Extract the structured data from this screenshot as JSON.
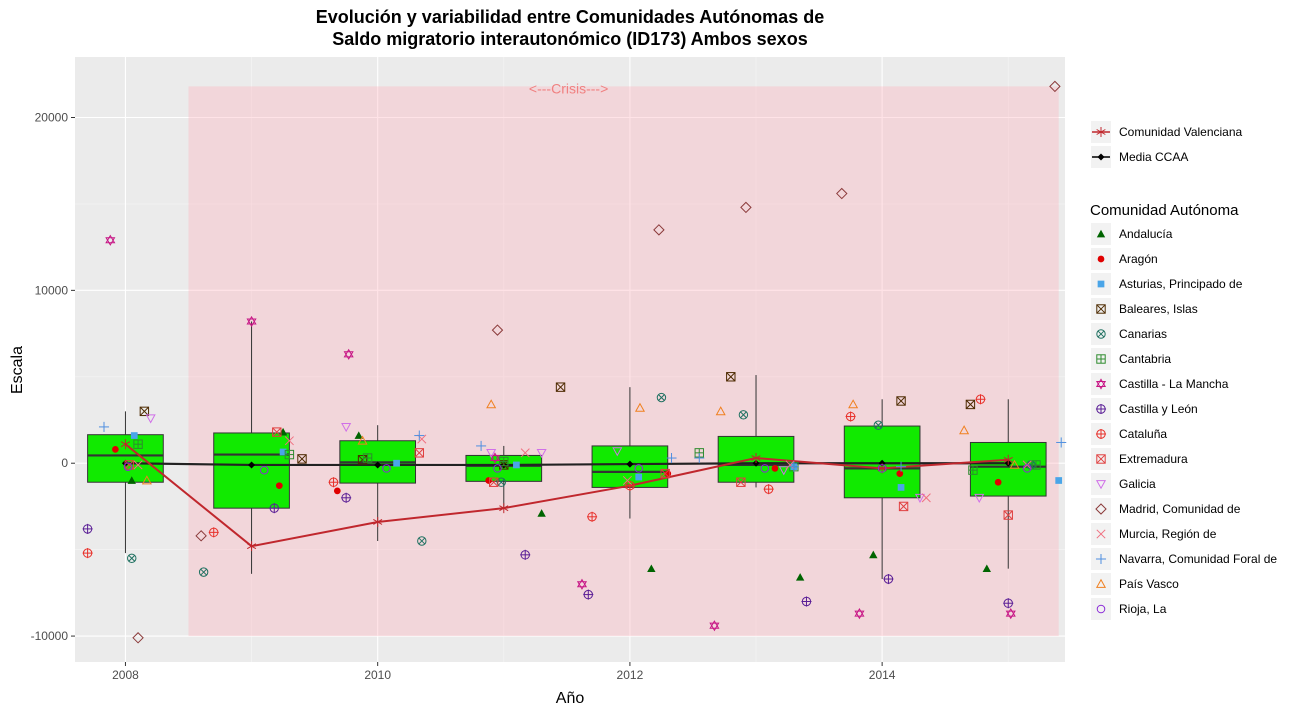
{
  "chart_data": {
    "type": "boxplot",
    "title_line1": "Evolución y variabilidad entre Comunidades Autónomas de",
    "title_line2": "Saldo migratorio interautonómico (ID173) Ambos sexos",
    "xlabel": "Año",
    "ylabel": "Escala",
    "xlim": [
      2007.6,
      2015.45
    ],
    "ylim": [
      -11500,
      23500
    ],
    "x_ticks": [
      2008,
      2010,
      2012,
      2014
    ],
    "y_ticks": [
      -10000,
      0,
      10000,
      20000
    ],
    "crisis": {
      "label": "<---Crisis--->",
      "x0": 2008.5,
      "x1": 2015.4,
      "y0": -10000,
      "y1": 21800,
      "color": "#ffb6c1"
    },
    "years": [
      2008,
      2009,
      2010,
      2011,
      2012,
      2013,
      2014,
      2015
    ],
    "boxes": [
      {
        "year": 2008,
        "q1": -1100,
        "median": 450,
        "q3": 1650,
        "lo": -5200,
        "hi": 3000
      },
      {
        "year": 2009,
        "q1": -2600,
        "median": 500,
        "q3": 1750,
        "lo": -6400,
        "hi": 8200
      },
      {
        "year": 2010,
        "q1": -1150,
        "median": 50,
        "q3": 1300,
        "lo": -4500,
        "hi": 2200
      },
      {
        "year": 2011,
        "q1": -1050,
        "median": -150,
        "q3": 450,
        "lo": -2600,
        "hi": 1000
      },
      {
        "year": 2012,
        "q1": -1400,
        "median": -500,
        "q3": 1000,
        "lo": -3200,
        "hi": 4400
      },
      {
        "year": 2013,
        "q1": -1100,
        "median": -100,
        "q3": 1550,
        "lo": -1400,
        "hi": 5100
      },
      {
        "year": 2014,
        "q1": -2000,
        "median": -300,
        "q3": 2150,
        "lo": -6700,
        "hi": 3700
      },
      {
        "year": 2015,
        "q1": -1900,
        "median": -200,
        "q3": 1200,
        "lo": -6100,
        "hi": 3700
      }
    ],
    "box_color": "#11ea00",
    "media_ccaa": [
      0,
      -100,
      -100,
      -100,
      -50,
      0,
      0,
      0
    ],
    "comunidad_valenciana": [
      1100,
      -4800,
      -3400,
      -2600,
      -1300,
      300,
      -300,
      200
    ],
    "legend_top": [
      {
        "name": "Comunidad Valenciana",
        "shape": "asterisk",
        "color": "#c0272d"
      },
      {
        "name": "Media CCAA",
        "shape": "diamond-filled",
        "color": "#000000"
      }
    ],
    "legend_title": "Comunidad Autónoma",
    "series": [
      {
        "name": "Andalucía",
        "shape": "triangle-filled",
        "color": "#006400",
        "points": [
          [
            2008.05,
            -1000
          ],
          [
            2009.25,
            1800
          ],
          [
            2009.85,
            1600
          ],
          [
            2011.3,
            -2900
          ],
          [
            2012.17,
            -6100
          ],
          [
            2013.35,
            -6600
          ],
          [
            2013.93,
            -5300
          ],
          [
            2014.83,
            -6100
          ]
        ]
      },
      {
        "name": "Aragón",
        "shape": "circle-filled",
        "color": "#e00000",
        "points": [
          [
            2007.92,
            800
          ],
          [
            2009.22,
            -1300
          ],
          [
            2009.68,
            -1600
          ],
          [
            2010.88,
            -1000
          ],
          [
            2012.3,
            -600
          ],
          [
            2013.15,
            -300
          ],
          [
            2014.14,
            -600
          ],
          [
            2014.92,
            -1100
          ]
        ]
      },
      {
        "name": "Asturias, Principado de",
        "shape": "square-filled",
        "color": "#4aa5e8",
        "points": [
          [
            2008.07,
            1600
          ],
          [
            2009.25,
            650
          ],
          [
            2010.15,
            0
          ],
          [
            2011.1,
            -100
          ],
          [
            2012.07,
            -800
          ],
          [
            2013.3,
            -200
          ],
          [
            2014.15,
            -1400
          ],
          [
            2015.4,
            -1000
          ]
        ]
      },
      {
        "name": "Baleares, Islas",
        "shape": "square-x",
        "color": "#4d2a00",
        "points": [
          [
            2008.15,
            3000
          ],
          [
            2009.4,
            250
          ],
          [
            2009.88,
            200
          ],
          [
            2011.0,
            -100
          ],
          [
            2011.45,
            4400
          ],
          [
            2012.8,
            5000
          ],
          [
            2014.15,
            3600
          ],
          [
            2014.7,
            3400
          ]
        ]
      },
      {
        "name": "Canarias",
        "shape": "circle-x",
        "color": "#1e7060",
        "points": [
          [
            2008.05,
            -5500
          ],
          [
            2008.62,
            -6300
          ],
          [
            2010.35,
            -4500
          ],
          [
            2010.98,
            -1100
          ],
          [
            2012.25,
            3800
          ],
          [
            2012.9,
            2800
          ],
          [
            2013.97,
            2200
          ],
          [
            2015.18,
            -100
          ]
        ]
      },
      {
        "name": "Cantabria",
        "shape": "square-plus",
        "color": "#2e8b2e",
        "points": [
          [
            2008.1,
            1100
          ],
          [
            2009.3,
            500
          ],
          [
            2009.92,
            300
          ],
          [
            2011.0,
            100
          ],
          [
            2012.55,
            600
          ],
          [
            2013.3,
            -200
          ],
          [
            2014.72,
            -400
          ],
          [
            2015.22,
            -100
          ]
        ]
      },
      {
        "name": "Castilla - La Mancha",
        "shape": "star-david",
        "color": "#c71585",
        "points": [
          [
            2007.88,
            12900
          ],
          [
            2009.0,
            8200
          ],
          [
            2009.77,
            6300
          ],
          [
            2010.93,
            300
          ],
          [
            2011.62,
            -7000
          ],
          [
            2012.67,
            -9400
          ],
          [
            2013.82,
            -8700
          ],
          [
            2015.02,
            -8700
          ]
        ]
      },
      {
        "name": "Castilla y León",
        "shape": "circle-plus",
        "color": "#5a1e96",
        "points": [
          [
            2007.7,
            -3800
          ],
          [
            2009.18,
            -2600
          ],
          [
            2009.75,
            -2000
          ],
          [
            2011.17,
            -5300
          ],
          [
            2011.67,
            -7600
          ],
          [
            2013.4,
            -8000
          ],
          [
            2014.05,
            -6700
          ],
          [
            2015.0,
            -8100
          ]
        ]
      },
      {
        "name": "Cataluña",
        "shape": "circle-plus-open",
        "color": "#e8302a",
        "points": [
          [
            2007.7,
            -5200
          ],
          [
            2008.7,
            -4000
          ],
          [
            2009.65,
            -1100
          ],
          [
            2011.7,
            -3100
          ],
          [
            2012.0,
            -1300
          ],
          [
            2013.1,
            -1500
          ],
          [
            2013.75,
            2700
          ],
          [
            2014.78,
            3700
          ]
        ]
      },
      {
        "name": "Extremadura",
        "shape": "square-x",
        "color": "#e04040",
        "points": [
          [
            2008.03,
            -100
          ],
          [
            2009.2,
            1800
          ],
          [
            2010.33,
            600
          ],
          [
            2010.92,
            -1100
          ],
          [
            2012.28,
            -600
          ],
          [
            2012.88,
            -1100
          ],
          [
            2014.17,
            -2500
          ],
          [
            2015.0,
            -3000
          ]
        ]
      },
      {
        "name": "Galicia",
        "shape": "triangle-down",
        "color": "#d070e8",
        "points": [
          [
            2008.2,
            2600
          ],
          [
            2009.75,
            2100
          ],
          [
            2010.9,
            600
          ],
          [
            2011.3,
            600
          ],
          [
            2011.9,
            700
          ],
          [
            2013.22,
            -400
          ],
          [
            2014.3,
            -2000
          ],
          [
            2014.77,
            -2000
          ]
        ]
      },
      {
        "name": "Madrid, Comunidad de",
        "shape": "diamond",
        "color": "#8b3a3a",
        "points": [
          [
            2008.1,
            -10100
          ],
          [
            2008.6,
            -4200
          ],
          [
            2010.95,
            7700
          ],
          [
            2012.23,
            13500
          ],
          [
            2012.92,
            14800
          ],
          [
            2013.68,
            15600
          ],
          [
            2015.37,
            21800
          ]
        ]
      },
      {
        "name": "Murcia, Región de",
        "shape": "x",
        "color": "#f07080",
        "points": [
          [
            2008.1,
            -100
          ],
          [
            2009.3,
            1300
          ],
          [
            2010.35,
            1400
          ],
          [
            2011.17,
            600
          ],
          [
            2011.98,
            -1000
          ],
          [
            2013.27,
            -100
          ],
          [
            2014.35,
            -2000
          ],
          [
            2015.15,
            -100
          ]
        ]
      },
      {
        "name": "Navarra, Comunidad Foral de",
        "shape": "plus",
        "color": "#4f8fe0",
        "points": [
          [
            2007.83,
            2100
          ],
          [
            2010.33,
            1600
          ],
          [
            2010.82,
            1000
          ],
          [
            2012.33,
            300
          ],
          [
            2012.55,
            300
          ],
          [
            2013.3,
            -200
          ],
          [
            2014.15,
            -200
          ],
          [
            2015.42,
            1200
          ]
        ]
      },
      {
        "name": "País Vasco",
        "shape": "triangle",
        "color": "#f08020",
        "points": [
          [
            2008.17,
            -1000
          ],
          [
            2009.88,
            1300
          ],
          [
            2010.9,
            3400
          ],
          [
            2012.08,
            3200
          ],
          [
            2012.72,
            3000
          ],
          [
            2013.77,
            3400
          ],
          [
            2014.65,
            1900
          ],
          [
            2015.05,
            -100
          ]
        ]
      },
      {
        "name": "Rioja, La",
        "shape": "circle",
        "color": "#8b2ad8",
        "points": [
          [
            2008.02,
            -200
          ],
          [
            2009.1,
            -400
          ],
          [
            2010.07,
            -300
          ],
          [
            2010.95,
            -300
          ],
          [
            2012.07,
            -300
          ],
          [
            2013.07,
            -300
          ],
          [
            2014.0,
            -300
          ],
          [
            2015.15,
            -300
          ]
        ]
      }
    ]
  }
}
